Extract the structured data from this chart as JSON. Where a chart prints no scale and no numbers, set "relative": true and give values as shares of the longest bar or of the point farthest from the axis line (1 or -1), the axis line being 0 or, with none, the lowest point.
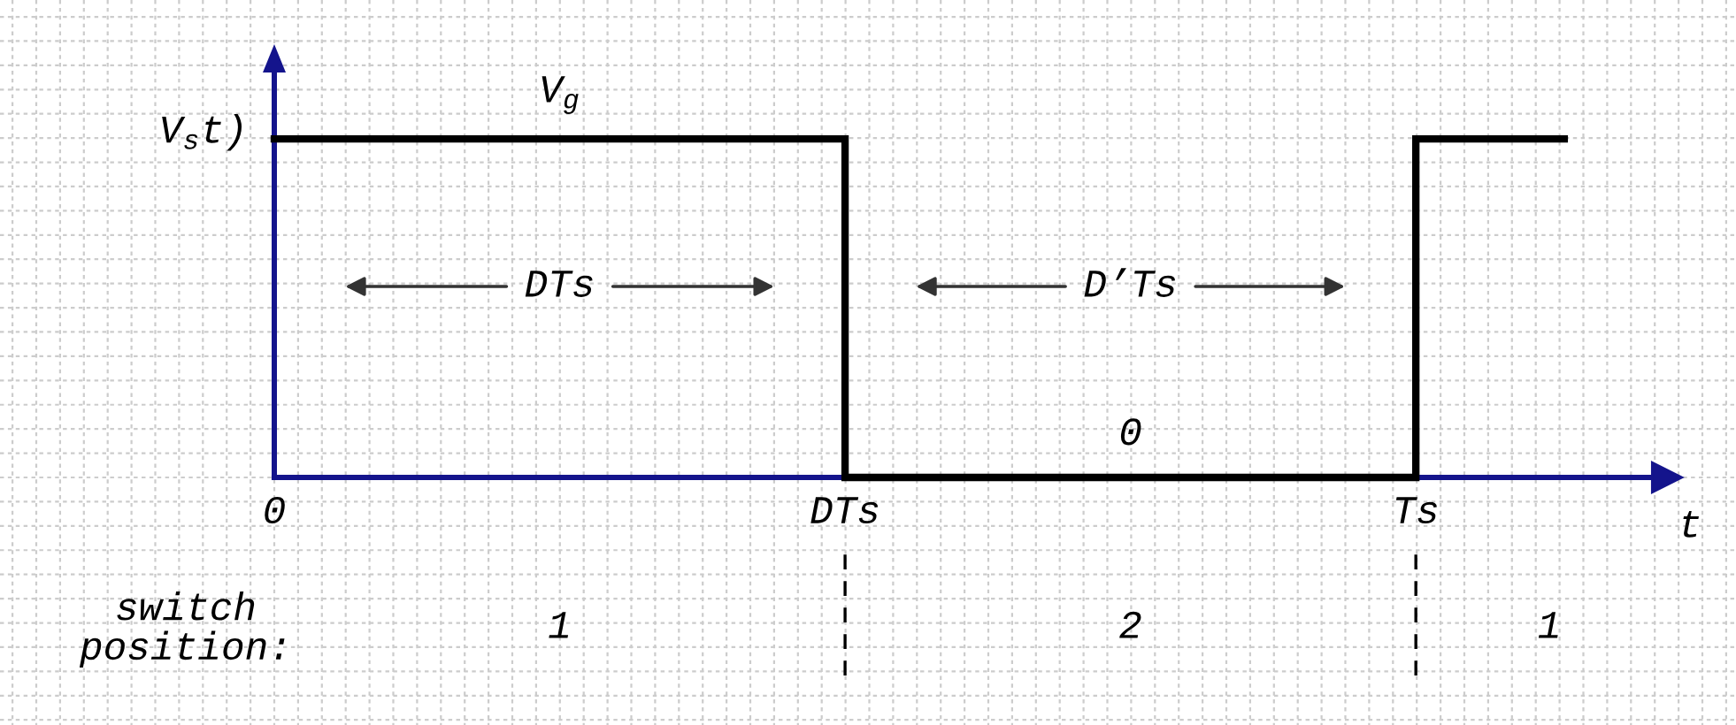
{
  "chart_data": {
    "type": "step",
    "relative": true,
    "categories": [
      "0",
      "DTs",
      "Ts"
    ],
    "series": [
      {
        "color": "#000000",
        "values": [
          1,
          0,
          1
        ]
      }
    ],
    "xlabel": "t",
    "ylabel": "V$_{s}$t)",
    "tick_labels": "x",
    "grid": true,
    "annotations": [
      "V$_{g}$",
      "DTs",
      "D’Ts",
      "0",
      "switch\nposition:",
      "1",
      "2",
      "1"
    ]
  }
}
